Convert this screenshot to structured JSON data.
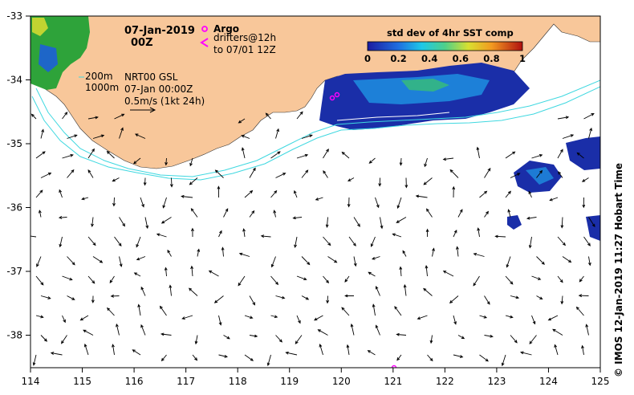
{
  "header": {
    "date": "07-Jan-2019",
    "time": "00Z"
  },
  "legend": {
    "argo_label": "Argo",
    "drifters_label": "drifters@12h",
    "drifters_sub": "to 07/01 12Z",
    "isobath_200": "200m",
    "isobath_1000": "1000m",
    "model": "NRT00 GSL",
    "model_time": "07-Jan 00:00Z",
    "scale": "0.5m/s (1kt 24h)"
  },
  "colorbar": {
    "title": "std dev of 4hr SST comp",
    "ticks": [
      "0",
      "0.2",
      "0.4",
      "0.6",
      "0.8",
      "1"
    ]
  },
  "axes": {
    "x_ticks": [
      "114",
      "115",
      "116",
      "117",
      "118",
      "119",
      "120",
      "121",
      "122",
      "123",
      "124",
      "125"
    ],
    "y_ticks": [
      "-33",
      "-34",
      "-35",
      "-36",
      "-37",
      "-38"
    ]
  },
  "credit": "© IMOS 12-Jan-2019 11:27 Hobart Time",
  "colors": {
    "land": "#f8c79a",
    "isobath": "#3fd8e0",
    "argo": "#ff00ff",
    "sst_low": "#1a2ea8"
  }
}
